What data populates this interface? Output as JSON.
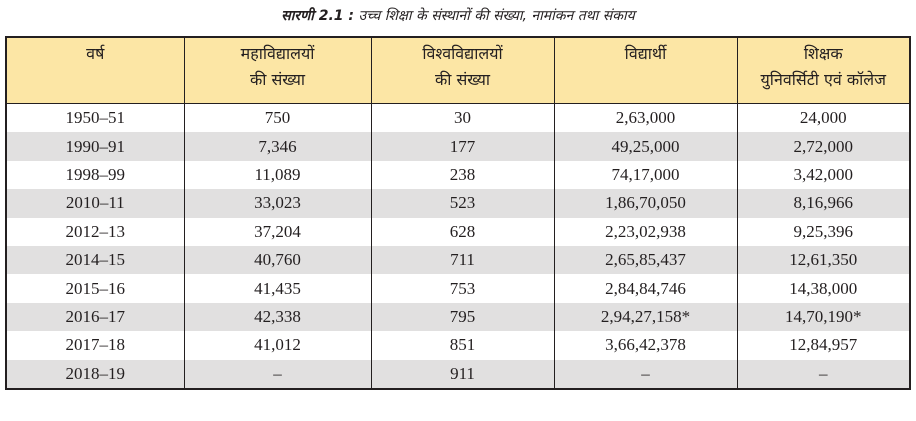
{
  "caption": {
    "label": "सारणी 2.1 :",
    "text": "उच्च शिक्षा के संस्थानों की संख्या, नामांकन तथा संकाय"
  },
  "table": {
    "headers": [
      [
        "वर्ष"
      ],
      [
        "महाविद्यालयों",
        "की संख्या"
      ],
      [
        "विश्वविद्यालयों",
        "की संख्या"
      ],
      [
        "विद्यार्थी"
      ],
      [
        "शिक्षक",
        "युनिवर्सिटी एवं कॉलेज"
      ]
    ],
    "rows": [
      [
        "1950–51",
        "750",
        "30",
        "2,63,000",
        "24,000"
      ],
      [
        "1990–91",
        "7,346",
        "177",
        "49,25,000",
        "2,72,000"
      ],
      [
        "1998–99",
        "11,089",
        "238",
        "74,17,000",
        "3,42,000"
      ],
      [
        "2010–11",
        "33,023",
        "523",
        "1,86,70,050",
        "8,16,966"
      ],
      [
        "2012–13",
        "37,204",
        "628",
        "2,23,02,938",
        "9,25,396"
      ],
      [
        "2014–15",
        "40,760",
        "711",
        "2,65,85,437",
        "12,61,350"
      ],
      [
        "2015–16",
        "41,435",
        "753",
        "2,84,84,746",
        "14,38,000"
      ],
      [
        "2016–17",
        "42,338",
        "795",
        "2,94,27,158*",
        "14,70,190*"
      ],
      [
        "2017–18",
        "41,012",
        "851",
        "3,66,42,378",
        "12,84,957"
      ],
      [
        "2018–19",
        "–",
        "911",
        "–",
        "–"
      ]
    ],
    "shade_color": "#e1e0e0",
    "header_color": "#fce6a5"
  }
}
